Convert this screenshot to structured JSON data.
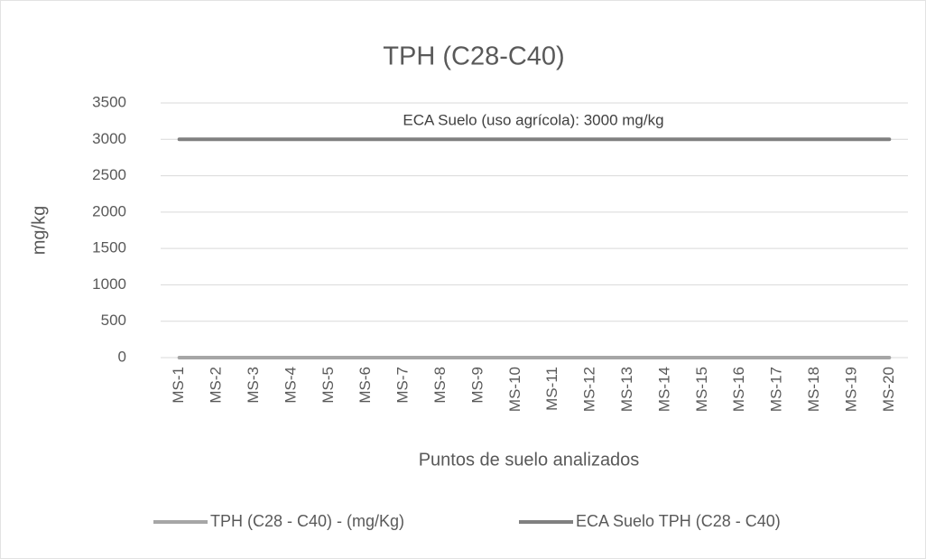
{
  "chart_data": {
    "type": "line",
    "title": "TPH (C28-C40)",
    "annotation": "ECA Suelo (uso agrícola): 3000 mg/kg",
    "x_label": "Puntos de suelo analizados",
    "y_label": "mg/kg",
    "categories": [
      "MS-1",
      "MS-2",
      "MS-3",
      "MS-4",
      "MS-5",
      "MS-6",
      "MS-7",
      "MS-8",
      "MS-9",
      "MS-10",
      "MS-11",
      "MS-12",
      "MS-13",
      "MS-14",
      "MS-15",
      "MS-16",
      "MS-17",
      "MS-18",
      "MS-19",
      "MS-20"
    ],
    "series": [
      {
        "name": "TPH (C28 - C40) - (mg/Kg)",
        "color": "#a6a6a6",
        "values": [
          0,
          0,
          0,
          0,
          0,
          0,
          0,
          0,
          0,
          0,
          0,
          0,
          0,
          0,
          0,
          0,
          0,
          0,
          0,
          0
        ]
      },
      {
        "name": "ECA Suelo TPH (C28 - C40)",
        "color": "#808080",
        "values": [
          3000,
          3000,
          3000,
          3000,
          3000,
          3000,
          3000,
          3000,
          3000,
          3000,
          3000,
          3000,
          3000,
          3000,
          3000,
          3000,
          3000,
          3000,
          3000,
          3000
        ]
      }
    ],
    "ylim": [
      0,
      3500
    ],
    "yticks": [
      0,
      500,
      1000,
      1500,
      2000,
      2500,
      3000,
      3500
    ],
    "grid": true,
    "legend": "bottom"
  }
}
